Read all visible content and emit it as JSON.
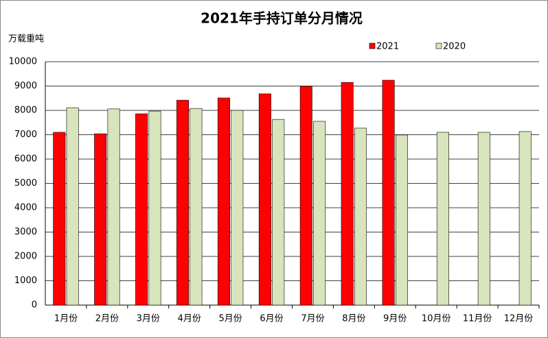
{
  "chart_data": {
    "type": "bar",
    "title": "2021年手持订单分月情况",
    "y_label": "万载重吨",
    "categories": [
      "1月份",
      "2月份",
      "3月份",
      "4月份",
      "5月份",
      "6月份",
      "7月份",
      "8月份",
      "9月份",
      "10月份",
      "11月份",
      "12月份"
    ],
    "series": [
      {
        "name": "2021",
        "color": "#ff0000",
        "values": [
          7100,
          7040,
          7860,
          8420,
          8510,
          8680,
          8990,
          9150,
          9240,
          null,
          null,
          null
        ]
      },
      {
        "name": "2020",
        "color": "#d8e4bc",
        "values": [
          8110,
          8060,
          7970,
          8080,
          8000,
          7630,
          7550,
          7270,
          6990,
          7100,
          7100,
          7130
        ]
      }
    ],
    "ylim": [
      0,
      10000
    ],
    "yticks": [
      0,
      1000,
      2000,
      3000,
      4000,
      5000,
      6000,
      7000,
      8000,
      9000,
      10000
    ],
    "grid": true
  }
}
